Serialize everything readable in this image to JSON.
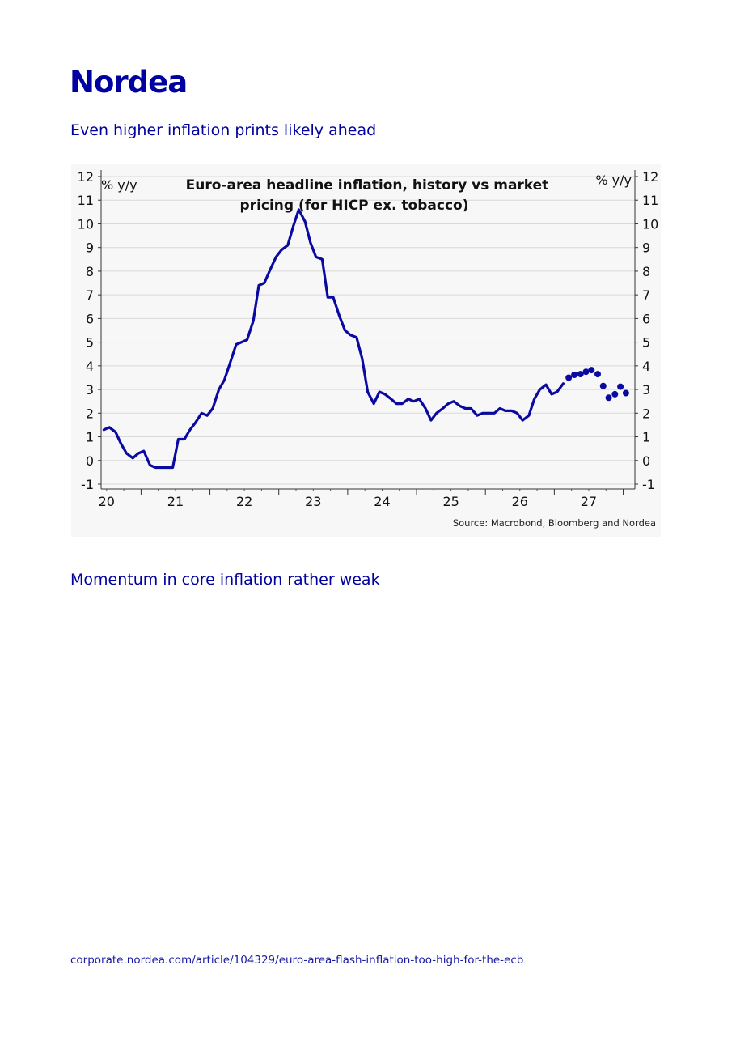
{
  "brand": {
    "logo_text": "Nordea"
  },
  "headings": {
    "first": "Even higher inflation prints likely ahead",
    "second": "Momentum in core inflation rather weak"
  },
  "footer": {
    "url_text": "corporate.nordea.com/article/104329/euro-area-flash-inflation-too-high-for-the-ecb"
  },
  "chart_data": {
    "type": "line",
    "title": "Euro-area headline inflation, history vs market pricing (for HICP ex. tobacco)",
    "title_lines": [
      "Euro-area headline inflation, history vs market",
      "pricing (for HICP ex. tobacco)"
    ],
    "ylabel_left": "% y/y",
    "ylabel_right": "% y/y",
    "source": "Source: Macrobond, Bloomberg and Nordea",
    "ylim": [
      -1,
      12
    ],
    "yticks": [
      -1,
      0,
      1,
      2,
      3,
      4,
      5,
      6,
      7,
      8,
      9,
      10,
      11,
      12
    ],
    "xlim": [
      2019.42,
      2027.17
    ],
    "xticks": [
      {
        "value": 2020,
        "label": "20"
      },
      {
        "value": 2021,
        "label": "21"
      },
      {
        "value": 2022,
        "label": "22"
      },
      {
        "value": 2023,
        "label": "23"
      },
      {
        "value": 2024,
        "label": "24"
      },
      {
        "value": 2025,
        "label": "25"
      },
      {
        "value": 2026,
        "label": "26"
      },
      {
        "value": 2027,
        "label": "27"
      }
    ],
    "grid": true,
    "colors": {
      "series": "#0a0aa0",
      "grid": "#d9d9d9"
    },
    "series": [
      {
        "style": "line",
        "points": [
          [
            2019.46,
            1.3
          ],
          [
            2019.54,
            1.4
          ],
          [
            2019.63,
            1.2
          ],
          [
            2019.71,
            0.7
          ],
          [
            2019.79,
            0.3
          ],
          [
            2019.88,
            0.1
          ],
          [
            2019.96,
            0.3
          ],
          [
            2020.04,
            0.4
          ],
          [
            2020.13,
            -0.2
          ],
          [
            2020.21,
            -0.3
          ],
          [
            2020.29,
            -0.3
          ],
          [
            2020.38,
            -0.3
          ],
          [
            2020.46,
            -0.3
          ],
          [
            2020.54,
            0.9
          ],
          [
            2020.63,
            0.9
          ],
          [
            2020.71,
            1.3
          ],
          [
            2020.79,
            1.6
          ],
          [
            2020.88,
            2.0
          ],
          [
            2020.96,
            1.9
          ],
          [
            2021.04,
            2.2
          ],
          [
            2021.13,
            3.0
          ],
          [
            2021.21,
            3.4
          ],
          [
            2021.29,
            4.1
          ],
          [
            2021.38,
            4.9
          ],
          [
            2021.46,
            5.0
          ],
          [
            2021.54,
            5.1
          ],
          [
            2021.63,
            5.9
          ],
          [
            2021.71,
            7.4
          ],
          [
            2021.79,
            7.5
          ],
          [
            2021.88,
            8.1
          ],
          [
            2021.96,
            8.6
          ],
          [
            2022.04,
            8.9
          ],
          [
            2022.13,
            9.1
          ],
          [
            2022.21,
            9.9
          ],
          [
            2022.29,
            10.6
          ],
          [
            2022.38,
            10.1
          ],
          [
            2022.46,
            9.2
          ],
          [
            2022.54,
            8.6
          ],
          [
            2022.63,
            8.5
          ],
          [
            2022.71,
            6.9
          ],
          [
            2022.79,
            6.9
          ],
          [
            2022.88,
            6.1
          ],
          [
            2022.96,
            5.5
          ],
          [
            2023.04,
            5.3
          ],
          [
            2023.13,
            5.2
          ],
          [
            2023.21,
            4.3
          ],
          [
            2023.29,
            2.9
          ],
          [
            2023.38,
            2.4
          ],
          [
            2023.46,
            2.9
          ],
          [
            2023.54,
            2.8
          ],
          [
            2023.63,
            2.6
          ],
          [
            2023.71,
            2.4
          ],
          [
            2023.79,
            2.4
          ],
          [
            2023.88,
            2.6
          ],
          [
            2023.96,
            2.5
          ],
          [
            2024.04,
            2.6
          ],
          [
            2024.13,
            2.2
          ],
          [
            2024.21,
            1.7
          ],
          [
            2024.29,
            2.0
          ],
          [
            2024.38,
            2.2
          ],
          [
            2024.46,
            2.4
          ],
          [
            2024.54,
            2.5
          ],
          [
            2024.63,
            2.3
          ],
          [
            2024.71,
            2.2
          ],
          [
            2024.79,
            2.2
          ],
          [
            2024.88,
            1.9
          ],
          [
            2024.96,
            2.0
          ],
          [
            2025.04,
            2.0
          ],
          [
            2025.13,
            2.0
          ],
          [
            2025.21,
            2.2
          ],
          [
            2025.29,
            2.1
          ],
          [
            2025.38,
            2.1
          ],
          [
            2025.46,
            2.0
          ],
          [
            2025.54,
            1.7
          ],
          [
            2025.63,
            1.9
          ],
          [
            2025.71,
            2.6
          ],
          [
            2025.79,
            3.0
          ],
          [
            2025.88,
            3.2
          ],
          [
            2025.96,
            2.8
          ],
          [
            2026.04,
            2.9
          ],
          [
            2026.13,
            3.25
          ]
        ]
      },
      {
        "style": "dots",
        "points": [
          [
            2026.21,
            3.5
          ],
          [
            2026.29,
            3.62
          ],
          [
            2026.38,
            3.65
          ],
          [
            2026.46,
            3.75
          ],
          [
            2026.54,
            3.82
          ],
          [
            2026.63,
            3.65
          ],
          [
            2026.71,
            3.15
          ],
          [
            2026.79,
            2.65
          ],
          [
            2026.88,
            2.8
          ],
          [
            2026.96,
            3.12
          ],
          [
            2027.04,
            2.85
          ]
        ]
      }
    ]
  }
}
